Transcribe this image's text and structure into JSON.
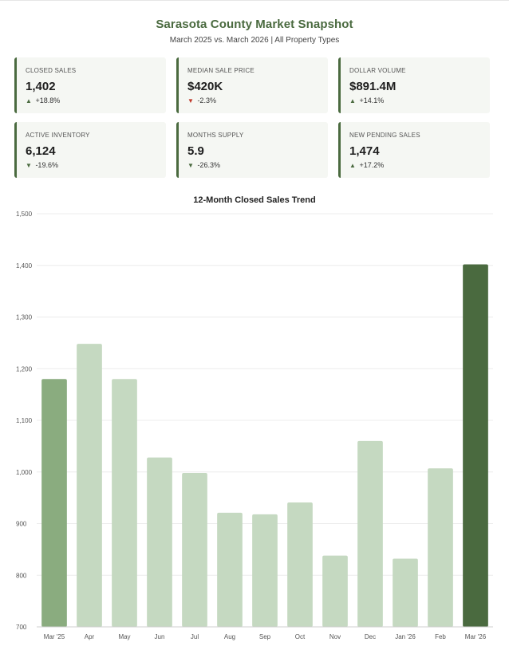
{
  "header": {
    "title": "Sarasota County Market Snapshot",
    "subtitle": "March 2025 vs. March 2026 | All Property Types"
  },
  "kpis": [
    {
      "label": "CLOSED SALES",
      "value": "1,402",
      "change": "+18.8%",
      "direction": "up",
      "tone": "good"
    },
    {
      "label": "MEDIAN SALE PRICE",
      "value": "$420K",
      "change": "-2.3%",
      "direction": "down",
      "tone": "bad"
    },
    {
      "label": "DOLLAR VOLUME",
      "value": "$891.4M",
      "change": "+14.1%",
      "direction": "up",
      "tone": "good"
    },
    {
      "label": "ACTIVE INVENTORY",
      "value": "6,124",
      "change": "-19.6%",
      "direction": "down",
      "tone": "good"
    },
    {
      "label": "MONTHS SUPPLY",
      "value": "5.9",
      "change": "-26.3%",
      "direction": "down",
      "tone": "good"
    },
    {
      "label": "NEW PENDING SALES",
      "value": "1,474",
      "change": "+17.2%",
      "direction": "up",
      "tone": "good"
    }
  ],
  "colors": {
    "accent": "#4a6a3f",
    "bar_prior_year": "#8aac7f",
    "bar_default": "#c5d9c1",
    "bar_current": "#4a6a3f",
    "negative": "#c0392b",
    "card_bg": "#f5f7f3"
  },
  "chart_data": {
    "type": "bar",
    "title": "12-Month Closed Sales Trend",
    "categories": [
      "Mar '25",
      "Apr",
      "May",
      "Jun",
      "Jul",
      "Aug",
      "Sep",
      "Oct",
      "Nov",
      "Dec",
      "Jan '26",
      "Feb",
      "Mar '26"
    ],
    "values": [
      1180,
      1248,
      1180,
      1028,
      998,
      921,
      918,
      941,
      838,
      1060,
      832,
      1007,
      1402
    ],
    "highlight": {
      "first": "Mar '25",
      "last": "Mar '26"
    },
    "ylim": [
      700,
      1500
    ],
    "yticks": [
      700,
      800,
      900,
      1000,
      1100,
      1200,
      1300,
      1400,
      1500
    ],
    "ytick_labels": [
      "700",
      "800",
      "900",
      "1,000",
      "1,100",
      "1,200",
      "1,300",
      "1,400",
      "1,500"
    ],
    "grid": true,
    "xlabel": "",
    "ylabel": ""
  }
}
